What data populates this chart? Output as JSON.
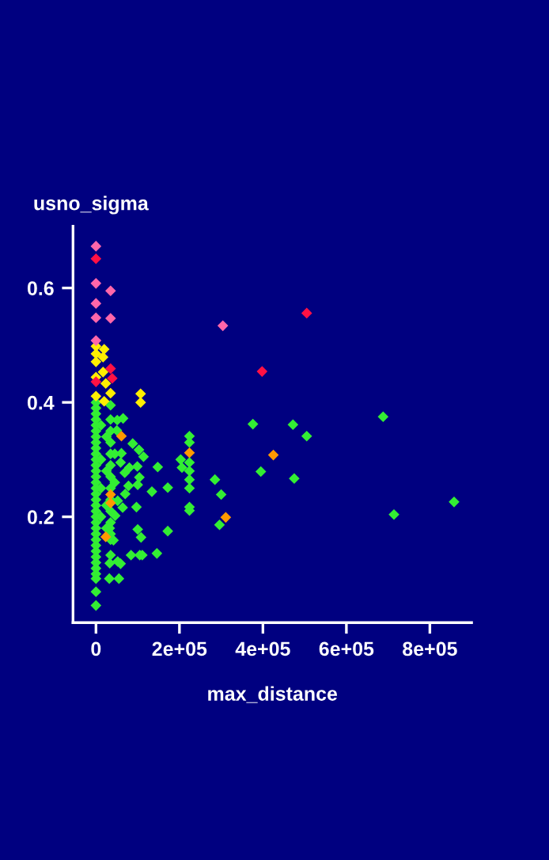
{
  "chart_data": {
    "type": "scatter",
    "xlabel": "max_distance",
    "ylabel": "usno_sigma",
    "xlim": [
      -55000,
      900000
    ],
    "ylim": [
      0.015,
      0.708
    ],
    "xticks": [
      0,
      {
        "value": 200000,
        "label": "2e+05"
      },
      {
        "value": 400000,
        "label": "4e+05"
      },
      {
        "value": 600000,
        "label": "6e+05"
      },
      {
        "value": 800000,
        "label": "8e+05"
      }
    ],
    "yticks": [
      0.2,
      0.4,
      0.6
    ],
    "grid": false,
    "legend": false,
    "marker": "diamond",
    "series": [
      {
        "color": "#33ee33",
        "x": [
          0,
          0,
          0,
          0,
          0,
          0,
          0,
          0,
          0,
          0,
          0,
          0,
          0,
          0,
          0,
          0,
          0,
          0,
          0,
          0,
          0,
          0,
          0,
          0,
          0,
          0,
          0,
          0,
          0,
          0,
          0,
          0,
          0,
          0,
          35000,
          35000,
          35000,
          35000,
          35000,
          35000,
          35000,
          35000,
          35000,
          35000,
          35000,
          35000,
          35000,
          12000,
          12000,
          12000,
          12000,
          25000,
          25000,
          25000,
          25000,
          45000,
          45000,
          65000,
          51000,
          50000,
          88000,
          103000,
          114000,
          61000,
          59000,
          99000,
          80000,
          69000,
          148000,
          203000,
          206000,
          104000,
          78000,
          100000,
          134000,
          172000,
          70000,
          52000,
          64000,
          97000,
          46000,
          33000,
          100000,
          108000,
          172000,
          42000,
          35000,
          33000,
          52000,
          59000,
          84000,
          105000,
          111000,
          146000,
          32000,
          55000,
          224000,
          224000,
          224000,
          224000,
          224000,
          224000,
          224000,
          224000,
          285000,
          300000,
          296000,
          376000,
          395000,
          472000,
          505000,
          475000,
          688000,
          858000,
          714000
        ],
        "values": [
          0.4,
          0.39,
          0.38,
          0.37,
          0.36,
          0.35,
          0.34,
          0.33,
          0.32,
          0.31,
          0.3,
          0.29,
          0.28,
          0.27,
          0.26,
          0.25,
          0.24,
          0.23,
          0.22,
          0.21,
          0.2,
          0.19,
          0.18,
          0.17,
          0.16,
          0.15,
          0.14,
          0.13,
          0.12,
          0.11,
          0.1,
          0.092,
          0.069,
          0.045,
          0.395,
          0.37,
          0.35,
          0.33,
          0.31,
          0.29,
          0.27,
          0.25,
          0.23,
          0.21,
          0.19,
          0.17,
          0.16,
          0.36,
          0.3,
          0.25,
          0.2,
          0.34,
          0.28,
          0.22,
          0.18,
          0.31,
          0.26,
          0.372,
          0.369,
          0.351,
          0.328,
          0.317,
          0.305,
          0.311,
          0.295,
          0.288,
          0.286,
          0.277,
          0.287,
          0.3,
          0.286,
          0.269,
          0.254,
          0.256,
          0.244,
          0.251,
          0.24,
          0.228,
          0.216,
          0.217,
          0.202,
          0.18,
          0.178,
          0.164,
          0.175,
          0.159,
          0.133,
          0.119,
          0.122,
          0.118,
          0.133,
          0.133,
          0.133,
          0.136,
          0.092,
          0.092,
          0.341,
          0.33,
          0.295,
          0.28,
          0.265,
          0.25,
          0.217,
          0.211,
          0.265,
          0.239,
          0.186,
          0.362,
          0.279,
          0.361,
          0.341,
          0.267,
          0.375,
          0.226,
          0.204
        ]
      },
      {
        "color": "#ffee00",
        "x": [
          0,
          0,
          0,
          0,
          0,
          19700,
          17000,
          17000,
          23500,
          35000,
          19700,
          107000,
          107000
        ],
        "values": [
          0.498,
          0.485,
          0.471,
          0.444,
          0.411,
          0.493,
          0.479,
          0.453,
          0.433,
          0.416,
          0.402,
          0.415,
          0.4
        ]
      },
      {
        "color": "#ff9900",
        "x": [
          61000,
          35000,
          35000,
          23500,
          224000,
          311000,
          425000
        ],
        "values": [
          0.341,
          0.239,
          0.224,
          0.165,
          0.312,
          0.199,
          0.308
        ]
      },
      {
        "color": "#ff66aa",
        "x": [
          0,
          0,
          0,
          0,
          35000,
          35000,
          0,
          304000
        ],
        "values": [
          0.673,
          0.608,
          0.573,
          0.548,
          0.595,
          0.547,
          0.508,
          0.534
        ]
      },
      {
        "color": "#ff1144",
        "x": [
          0,
          35000,
          39000,
          0,
          398000,
          505000
        ],
        "values": [
          0.651,
          0.459,
          0.442,
          0.436,
          0.454,
          0.556
        ]
      }
    ]
  }
}
